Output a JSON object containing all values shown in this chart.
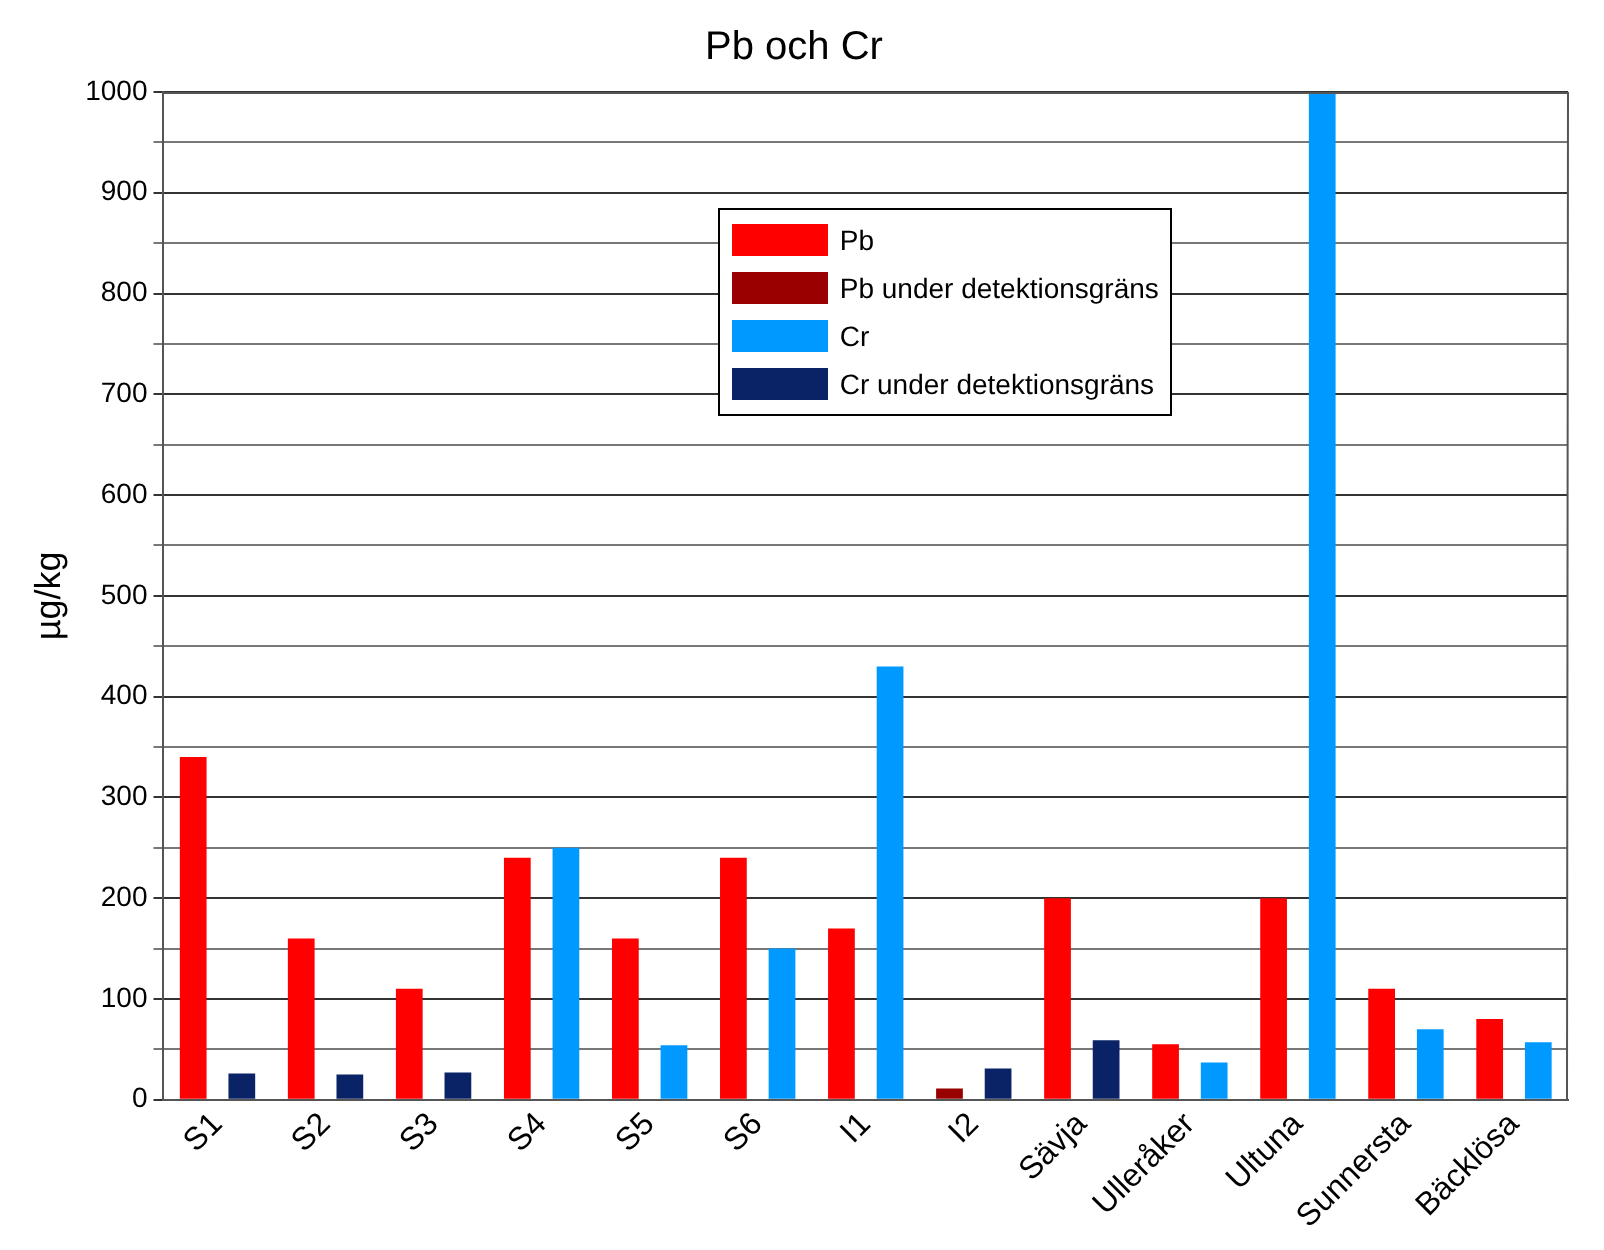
{
  "chart_data": {
    "type": "bar",
    "title": "Pb och Cr",
    "ylabel": "µg/kg",
    "categories": [
      "S1",
      "S2",
      "S3",
      "S4",
      "S5",
      "S6",
      "I1",
      "I2",
      "Sävja",
      "Ulleråker",
      "Ultuna",
      "Sunnersta",
      "Bäcklösa"
    ],
    "series": [
      {
        "name": "Pb",
        "color": "#ff0000",
        "values": [
          340,
          160,
          110,
          240,
          160,
          240,
          170,
          null,
          200,
          55,
          200,
          110,
          80
        ]
      },
      {
        "name": "Pb under detektionsgräns",
        "color": "#990000",
        "values": [
          null,
          null,
          null,
          null,
          null,
          null,
          null,
          11,
          null,
          null,
          null,
          null,
          null
        ]
      },
      {
        "name": "Cr",
        "color": "#0099ff",
        "values": [
          null,
          null,
          null,
          250,
          54,
          150,
          430,
          null,
          null,
          37,
          1000,
          70,
          57
        ]
      },
      {
        "name": "Cr under detektionsgräns",
        "color": "#0a2366",
        "values": [
          26,
          25,
          27,
          null,
          null,
          null,
          null,
          31,
          59,
          null,
          null,
          null,
          null
        ]
      }
    ],
    "ylim": [
      0,
      1000
    ],
    "yticks": [
      0,
      {
        "value": 50,
        "label": null
      },
      100,
      {
        "value": 150,
        "label": null
      },
      200,
      {
        "value": 250,
        "label": null
      },
      300,
      {
        "value": 350,
        "label": null
      },
      400,
      {
        "value": 450,
        "label": null
      },
      500,
      {
        "value": 550,
        "label": null
      },
      600,
      {
        "value": 650,
        "label": null
      },
      700,
      {
        "value": 750,
        "label": null
      },
      800,
      {
        "value": 850,
        "label": null
      },
      900,
      {
        "value": 950,
        "label": null
      },
      1000
    ],
    "grid": "y",
    "legend": "top"
  }
}
